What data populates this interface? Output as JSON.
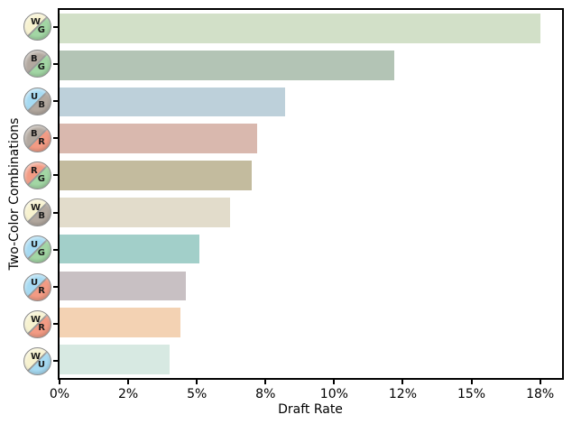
{
  "chart_data": {
    "type": "bar",
    "orientation": "horizontal",
    "title": "",
    "xlabel": "Draft Rate",
    "ylabel": "Two-Color Combinations",
    "unit": "%",
    "xlim": [
      0,
      18.3
    ],
    "grid": false,
    "legend": false,
    "categories": [
      "WG",
      "BG",
      "UB",
      "BR",
      "RG",
      "WB",
      "UG",
      "UR",
      "WR",
      "WU"
    ],
    "values": [
      17.5,
      12.2,
      8.2,
      7.2,
      7.0,
      6.2,
      5.1,
      4.6,
      4.4,
      4.0
    ],
    "bar_colors": [
      "#d2e0c8",
      "#b3c4b5",
      "#bdd0da",
      "#d9b8ae",
      "#c3bb9e",
      "#e2dccb",
      "#a2cfc9",
      "#c8c0c3",
      "#f3d2b3",
      "#d7e9e2"
    ],
    "mana_colors": {
      "W": "#f7f2cf",
      "U": "#a6daf2",
      "B": "#b2a89f",
      "R": "#f29b84",
      "G": "#a2d6a4"
    },
    "icon_divider_color": "#9a9a9a",
    "xticks": [
      {
        "value": 0,
        "label": "0%"
      },
      {
        "value": 2.5,
        "label": "2%"
      },
      {
        "value": 5,
        "label": "5%"
      },
      {
        "value": 7.5,
        "label": "8%"
      },
      {
        "value": 10,
        "label": "10%"
      },
      {
        "value": 12.5,
        "label": "12%"
      },
      {
        "value": 15,
        "label": "15%"
      },
      {
        "value": 17.5,
        "label": "18%"
      }
    ]
  }
}
